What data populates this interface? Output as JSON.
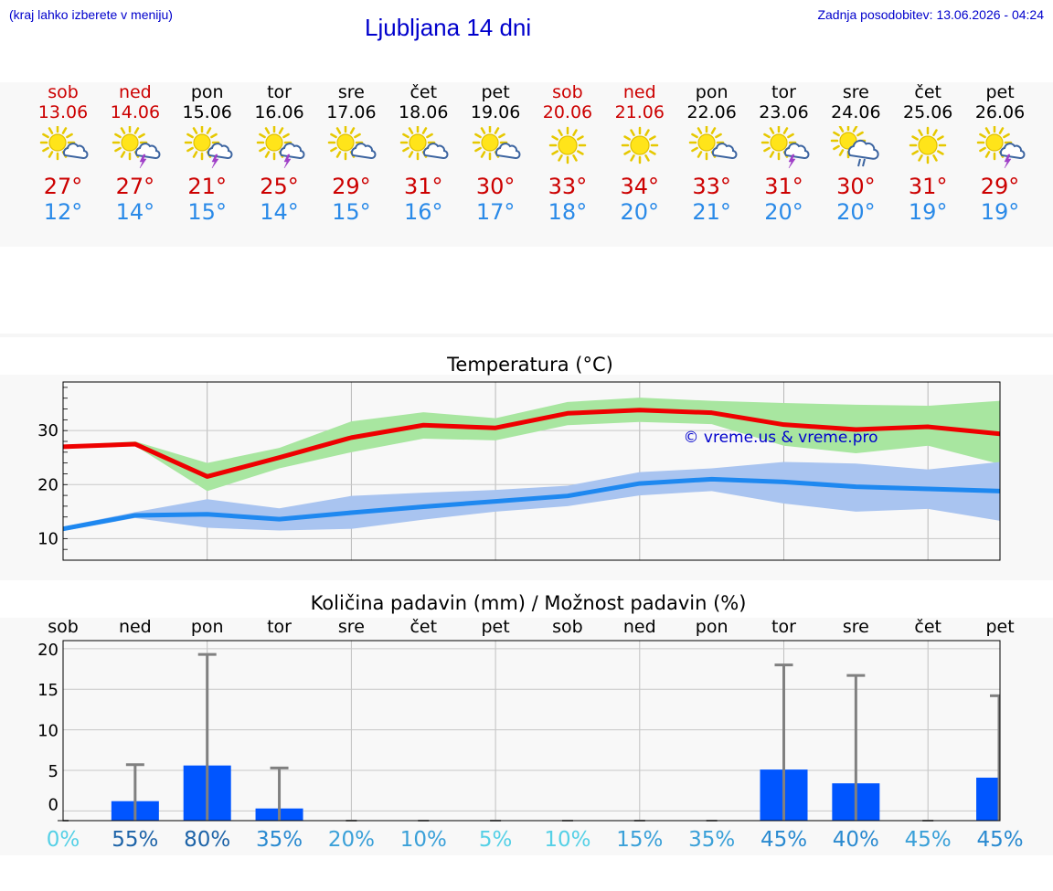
{
  "header": {
    "hint": "(kraj lahko izberete v meniju)",
    "title": "Ljubljana 14 dni",
    "updated": "Zadnja posodobitev: 13.06.2026 - 04:24"
  },
  "colors": {
    "link": "#0000cc",
    "weekend": "#cc0000",
    "max_line": "#ee0000",
    "max_band": "#a8e6a0",
    "min_line": "#1e88f0",
    "min_band": "#a9c4f0",
    "rain_bar": "#0055ff",
    "error_bar": "#808080"
  },
  "days": [
    {
      "name": "sob",
      "date": "13.06",
      "weekend": true,
      "icon": "sun-cloud-icon",
      "max": "27°",
      "min": "12°",
      "prob": "0%",
      "prob_color": "#55d0e6"
    },
    {
      "name": "ned",
      "date": "14.06",
      "weekend": true,
      "icon": "sun-cloud-lightning-icon",
      "max": "27°",
      "min": "14°",
      "prob": "55%",
      "prob_color": "#1e64a8"
    },
    {
      "name": "pon",
      "date": "15.06",
      "weekend": false,
      "icon": "sun-cloud-lightning-icon",
      "max": "21°",
      "min": "15°",
      "prob": "80%",
      "prob_color": "#1e64a8"
    },
    {
      "name": "tor",
      "date": "16.06",
      "weekend": false,
      "icon": "sun-cloud-lightning-icon",
      "max": "25°",
      "min": "14°",
      "prob": "35%",
      "prob_color": "#2a8ad0"
    },
    {
      "name": "sre",
      "date": "17.06",
      "weekend": false,
      "icon": "sun-cloud-icon",
      "max": "29°",
      "min": "15°",
      "prob": "20%",
      "prob_color": "#3aa0d8"
    },
    {
      "name": "čet",
      "date": "18.06",
      "weekend": false,
      "icon": "sun-cloud-icon",
      "max": "31°",
      "min": "16°",
      "prob": "10%",
      "prob_color": "#3aa0d8"
    },
    {
      "name": "pet",
      "date": "19.06",
      "weekend": false,
      "icon": "sun-cloud-icon",
      "max": "30°",
      "min": "17°",
      "prob": "5%",
      "prob_color": "#55d0e6"
    },
    {
      "name": "sob",
      "date": "20.06",
      "weekend": true,
      "icon": "sun-icon",
      "max": "33°",
      "min": "18°",
      "prob": "10%",
      "prob_color": "#55d0e6"
    },
    {
      "name": "ned",
      "date": "21.06",
      "weekend": true,
      "icon": "sun-icon",
      "max": "34°",
      "min": "20°",
      "prob": "15%",
      "prob_color": "#3aa0d8"
    },
    {
      "name": "pon",
      "date": "22.06",
      "weekend": false,
      "icon": "sun-cloud-icon",
      "max": "33°",
      "min": "21°",
      "prob": "35%",
      "prob_color": "#3aa0d8"
    },
    {
      "name": "tor",
      "date": "23.06",
      "weekend": false,
      "icon": "sun-cloud-lightning-icon",
      "max": "31°",
      "min": "20°",
      "prob": "45%",
      "prob_color": "#2a8ad0"
    },
    {
      "name": "sre",
      "date": "24.06",
      "weekend": false,
      "icon": "sun-cloud-rain-icon",
      "max": "30°",
      "min": "20°",
      "prob": "40%",
      "prob_color": "#2a8ad0"
    },
    {
      "name": "čet",
      "date": "25.06",
      "weekend": false,
      "icon": "sun-icon",
      "max": "31°",
      "min": "19°",
      "prob": "45%",
      "prob_color": "#3aa0d8"
    },
    {
      "name": "pet",
      "date": "26.06",
      "weekend": false,
      "icon": "sun-cloud-lightning-icon",
      "max": "29°",
      "min": "19°",
      "prob": "45%",
      "prob_color": "#2a8ad0"
    }
  ],
  "chart_data": [
    {
      "type": "line",
      "title": "Temperatura (°C)",
      "watermark": "© vreme.us & vreme.pro",
      "x": [
        "sob",
        "ned",
        "pon",
        "tor",
        "sre",
        "čet",
        "pet",
        "sob",
        "ned",
        "pon",
        "tor",
        "sre",
        "čet",
        "pet"
      ],
      "ylim": [
        6,
        39
      ],
      "yticks": [
        10,
        20,
        30
      ],
      "grid": true,
      "series": [
        {
          "role": "max",
          "values": [
            27,
            27.5,
            21.5,
            25,
            28.7,
            31,
            30.5,
            33.2,
            33.8,
            33.3,
            31.1,
            30.2,
            30.7,
            29.4
          ],
          "band_low": [
            26.8,
            27.2,
            18.8,
            23,
            26,
            28.5,
            28.2,
            31,
            31.6,
            31.2,
            27.2,
            25.8,
            27.2,
            23.8
          ],
          "band_high": [
            27.3,
            28,
            24,
            26.8,
            31.7,
            33.4,
            32.3,
            35.3,
            36.1,
            35.5,
            35.1,
            34.8,
            34.6,
            35.5
          ]
        },
        {
          "role": "min",
          "values": [
            11.8,
            14.3,
            14.5,
            13.6,
            14.8,
            15.9,
            16.9,
            17.9,
            20.2,
            21,
            20.5,
            19.6,
            19.2,
            18.8
          ],
          "band_low": [
            11.4,
            13.8,
            12,
            11.5,
            11.8,
            13.5,
            15,
            16,
            18,
            18.8,
            16.5,
            15,
            15.5,
            13.3
          ],
          "band_high": [
            12.2,
            14.9,
            17.3,
            15.6,
            17.9,
            18.5,
            19,
            19.8,
            22.3,
            23,
            24.2,
            23.9,
            22.8,
            24.2
          ]
        }
      ]
    },
    {
      "type": "bar",
      "title": "Količina padavin (mm) / Možnost padavin (%)",
      "categories": [
        "sob",
        "ned",
        "pon",
        "tor",
        "sre",
        "čet",
        "pet",
        "sob",
        "ned",
        "pon",
        "tor",
        "sre",
        "čet",
        "pet"
      ],
      "ylim": [
        -1.2,
        21
      ],
      "yticks": [
        0,
        5,
        10,
        15,
        20
      ],
      "values": [
        0,
        1.2,
        5.6,
        0.3,
        0,
        0,
        0,
        0,
        0,
        0,
        5.1,
        3.4,
        0,
        4.1
      ],
      "error_max": [
        0,
        5.7,
        19.3,
        5.3,
        0,
        0,
        0,
        0,
        0,
        0,
        18,
        16.7,
        0,
        14.2
      ],
      "probabilities": [
        "0%",
        "55%",
        "80%",
        "35%",
        "20%",
        "10%",
        "5%",
        "10%",
        "15%",
        "35%",
        "45%",
        "40%",
        "45%",
        "45%"
      ]
    }
  ]
}
